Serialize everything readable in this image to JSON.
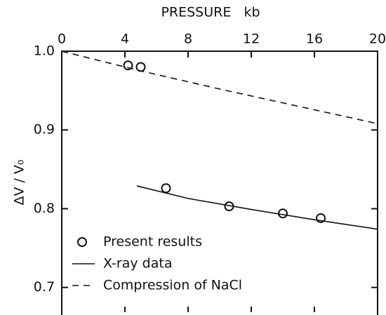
{
  "chart_data": {
    "type": "line",
    "xlabel": "PRESSURE   kb",
    "ylabel": "ΔV / V₀",
    "xlim": [
      0,
      20
    ],
    "xticks": [
      0,
      4,
      8,
      12,
      16,
      20
    ],
    "ylim": [
      0.665,
      1.0
    ],
    "yticks": [
      0.7,
      0.8,
      0.9,
      {
        "value": 1.0,
        "label": "1.0"
      }
    ],
    "legend": "lower left",
    "series": [
      {
        "name": "Present results",
        "style": "markers",
        "color": "#111111",
        "x": [
          4.2,
          5.0,
          6.6,
          10.6,
          14.0,
          16.4
        ],
        "values": [
          0.982,
          0.98,
          0.826,
          0.803,
          0.794,
          0.788
        ]
      },
      {
        "name": "X-ray data",
        "style": "solid",
        "color": "#111111",
        "x": [
          4.75,
          8,
          12,
          16,
          20
        ],
        "values": [
          0.829,
          0.813,
          0.799,
          0.786,
          0.774
        ]
      },
      {
        "name": "Compression of NaCl",
        "style": "dashed",
        "color": "#111111",
        "x": [
          0,
          5,
          10,
          15,
          20
        ],
        "values": [
          1.0,
          0.975,
          0.952,
          0.93,
          0.908
        ]
      }
    ]
  }
}
